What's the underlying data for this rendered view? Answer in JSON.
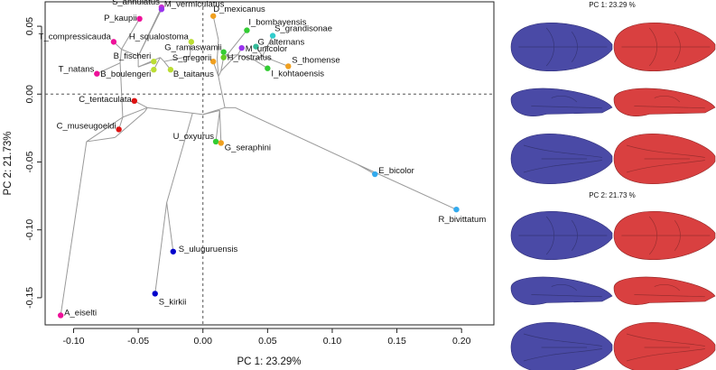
{
  "chart_data": {
    "type": "scatter",
    "xlabel": "PC 1: 23.29%",
    "ylabel": "PC 2: 21.73%",
    "xlim": [
      -0.122,
      0.225
    ],
    "ylim": [
      -0.17,
      0.068
    ],
    "xticks": [
      -0.1,
      -0.05,
      0.0,
      0.05,
      0.1,
      0.15,
      0.2
    ],
    "xtick_labels": [
      "-0.10",
      "-0.05",
      "0.00",
      "0.05",
      "0.10",
      "0.15",
      "0.20"
    ],
    "yticks": [
      -0.15,
      -0.1,
      -0.05,
      0.0,
      0.05
    ],
    "ytick_labels": [
      "-0.15",
      "-0.10",
      "-0.05",
      "0.00",
      "0.05"
    ],
    "reference_lines": {
      "x": 0,
      "y": 0,
      "style": "dashed"
    },
    "points": [
      {
        "name": "S_annulatus",
        "x": -0.032,
        "y": 0.064,
        "color": "#cc33cc"
      },
      {
        "name": "M_vermiculatus",
        "x": -0.032,
        "y": 0.0625,
        "color": "#9933ee"
      },
      {
        "name": "D_mexicanus",
        "x": 0.008,
        "y": 0.0575,
        "color": "#f0a020"
      },
      {
        "name": "P_kaupii",
        "x": -0.049,
        "y": 0.0555,
        "color": "#ee1199"
      },
      {
        "name": "T_compressicauda",
        "x": -0.069,
        "y": 0.0385,
        "color": "#ee1199"
      },
      {
        "name": "I_bombayensis",
        "x": 0.034,
        "y": 0.047,
        "color": "#33cc33"
      },
      {
        "name": "S_grandisonae",
        "x": 0.054,
        "y": 0.043,
        "color": "#33cccc"
      },
      {
        "name": "H_squalostoma",
        "x": -0.009,
        "y": 0.0385,
        "color": "#bbdd33"
      },
      {
        "name": "G_alternans",
        "x": 0.041,
        "y": 0.035,
        "color": "#33bb99"
      },
      {
        "name": "G_ramaswamii",
        "x": 0.016,
        "y": 0.031,
        "color": "#33cc33"
      },
      {
        "name": "M_unicolor",
        "x": 0.03,
        "y": 0.034,
        "color": "#9933ee"
      },
      {
        "name": "H_rostratus",
        "x": 0.016,
        "y": 0.027,
        "color": "#66cc22"
      },
      {
        "name": "B_fischeri",
        "x": -0.038,
        "y": 0.024,
        "color": "#bbdd33"
      },
      {
        "name": "S_gregorii",
        "x": 0.008,
        "y": 0.024,
        "color": "#f0a020"
      },
      {
        "name": "S_thomense",
        "x": 0.066,
        "y": 0.0205,
        "color": "#f0a020"
      },
      {
        "name": "T_natans",
        "x": -0.082,
        "y": 0.015,
        "color": "#ee1199"
      },
      {
        "name": "B_boulengeri",
        "x": -0.038,
        "y": 0.018,
        "color": "#bbdd33"
      },
      {
        "name": "B_taitanus",
        "x": -0.025,
        "y": 0.018,
        "color": "#bbdd33"
      },
      {
        "name": "I_kohtaoensis",
        "x": 0.05,
        "y": 0.019,
        "color": "#33cc33"
      },
      {
        "name": "C_tentaculata",
        "x": -0.053,
        "y": -0.005,
        "color": "#dd1111"
      },
      {
        "name": "C_museugoeldi",
        "x": -0.065,
        "y": -0.026,
        "color": "#dd1111"
      },
      {
        "name": "U_oxyurus",
        "x": 0.01,
        "y": -0.035,
        "color": "#33cc33"
      },
      {
        "name": "G_seraphini",
        "x": 0.014,
        "y": -0.036,
        "color": "#f0a020"
      },
      {
        "name": "E_bicolor",
        "x": 0.133,
        "y": -0.059,
        "color": "#33aaee"
      },
      {
        "name": "R_bivittatum",
        "x": 0.196,
        "y": -0.085,
        "color": "#33aaee"
      },
      {
        "name": "S_uluguruensis",
        "x": -0.023,
        "y": -0.116,
        "color": "#0000cc"
      },
      {
        "name": "S_kirkii",
        "x": -0.037,
        "y": -0.147,
        "color": "#0000cc"
      },
      {
        "name": "A_eiselti",
        "x": -0.11,
        "y": -0.163,
        "color": "#ee1199"
      }
    ],
    "tree_nodes": {
      "n1": [
        -0.09,
        -0.035
      ],
      "n2": [
        -0.068,
        -0.032
      ],
      "n3": [
        -0.062,
        -0.017
      ],
      "n4": [
        -0.045,
        -0.013
      ],
      "n5": [
        -0.043,
        -0.01
      ],
      "n6": [
        -0.05,
        0.02
      ],
      "n7": [
        -0.064,
        0.023
      ],
      "n8": [
        -0.063,
        0.033
      ],
      "n9": [
        -0.033,
        0.027
      ],
      "n10": [
        -0.03,
        0.024
      ],
      "n11": [
        -0.05,
        0.028
      ],
      "n12": [
        -0.008,
        -0.014
      ],
      "n13": [
        -0.028,
        -0.08
      ],
      "n14": [
        0.0,
        -0.015
      ],
      "n15": [
        0.017,
        -0.01
      ],
      "n16": [
        0.013,
        -0.012
      ],
      "n17": [
        0.012,
        0.013
      ],
      "n18": [
        0.014,
        0.017
      ],
      "n19": [
        0.022,
        0.025
      ],
      "n20": [
        0.027,
        0.029
      ],
      "n21": [
        0.046,
        0.028
      ],
      "n22": [
        0.04,
        0.025
      ],
      "n23": [
        0.011,
        0.026
      ],
      "n24": [
        0.012,
        0.04
      ],
      "n25": [
        -0.01,
        0.028
      ],
      "n26": [
        0.018,
        0.028
      ],
      "n27": [
        0.12,
        -0.052
      ],
      "n28": [
        0.025,
        -0.01
      ]
    },
    "tree_edges": [
      [
        "A_eiselti",
        "n1"
      ],
      [
        "n1",
        "n3"
      ],
      [
        "n1",
        "n2"
      ],
      [
        "n2",
        "n4"
      ],
      [
        "n3",
        "C_museugoeldi"
      ],
      [
        "n3",
        "n5"
      ],
      [
        "n5",
        "C_tentaculata"
      ],
      [
        "n4",
        "n5"
      ],
      [
        "n5",
        "n12"
      ],
      [
        "n3",
        "n7"
      ],
      [
        "n7",
        "T_natans"
      ],
      [
        "n7",
        "n8"
      ],
      [
        "n8",
        "T_compressicauda"
      ],
      [
        "n8",
        "P_kaupii"
      ],
      [
        "n8",
        "n11"
      ],
      [
        "n11",
        "n6"
      ],
      [
        "n6",
        "B_fischeri"
      ],
      [
        "n6",
        "n9"
      ],
      [
        "n9",
        "B_boulengeri"
      ],
      [
        "n9",
        "n10"
      ],
      [
        "n10",
        "B_taitanus"
      ],
      [
        "n10",
        "n25"
      ],
      [
        "n25",
        "H_squalostoma"
      ],
      [
        "n11",
        "S_annulatus"
      ],
      [
        "n11",
        "M_vermiculatus"
      ],
      [
        "n12",
        "n13"
      ],
      [
        "n13",
        "S_uluguruensis"
      ],
      [
        "n13",
        "S_kirkii"
      ],
      [
        "n12",
        "n14"
      ],
      [
        "n14",
        "n16"
      ],
      [
        "n16",
        "U_oxyurus"
      ],
      [
        "n16",
        "G_seraphini"
      ],
      [
        "n14",
        "n15"
      ],
      [
        "n15",
        "n28"
      ],
      [
        "n28",
        "n27"
      ],
      [
        "n27",
        "E_bicolor"
      ],
      [
        "n27",
        "R_bivittatum"
      ],
      [
        "n15",
        "n17"
      ],
      [
        "n17",
        "S_gregorii"
      ],
      [
        "n17",
        "n18"
      ],
      [
        "n18",
        "H_rostratus"
      ],
      [
        "n18",
        "n19"
      ],
      [
        "n19",
        "G_ramaswamii"
      ],
      [
        "n19",
        "n20"
      ],
      [
        "n20",
        "M_unicolor"
      ],
      [
        "n20",
        "n22"
      ],
      [
        "n22",
        "I_kohtaoensis"
      ],
      [
        "n22",
        "n21"
      ],
      [
        "n21",
        "S_thomense"
      ],
      [
        "n21",
        "G_alternans"
      ],
      [
        "n21",
        "S_grandisonae"
      ],
      [
        "n20",
        "n26"
      ],
      [
        "n26",
        "I_bombayensis"
      ],
      [
        "n17",
        "n23"
      ],
      [
        "n23",
        "n24"
      ],
      [
        "n24",
        "D_mexicanus"
      ]
    ]
  },
  "side_panels": [
    {
      "title": "PC 1: 23.29 %",
      "views": [
        "dorsal",
        "lateral",
        "ventral"
      ]
    },
    {
      "title": "PC 2: 21.73 %",
      "views": [
        "dorsal",
        "lateral",
        "ventral"
      ]
    }
  ],
  "colors": {
    "negative_extreme": "#4a4aa6",
    "positive_extreme": "#d94040",
    "tree_edges": "#999999",
    "reference_lines": "#555555"
  }
}
